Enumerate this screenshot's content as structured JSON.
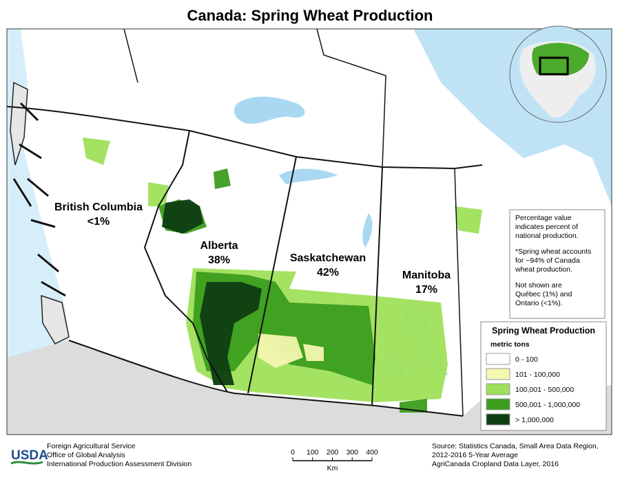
{
  "title": "Canada: Spring Wheat Production",
  "provinces": [
    {
      "name": "British Columbia",
      "share": "<1%"
    },
    {
      "name": "Alberta",
      "share": "38%"
    },
    {
      "name": "Saskatchewan",
      "share": "42%"
    },
    {
      "name": "Manitoba",
      "share": "17%"
    }
  ],
  "note": {
    "paragraphs": [
      [
        "Percentage value",
        "indicates percent of",
        "national production."
      ],
      [
        "*Spring wheat accounts",
        "for ~94% of Canada",
        "wheat production."
      ],
      [
        "Not shown are",
        "Québec (1%) and",
        "Ontario (<1%)."
      ]
    ]
  },
  "legend": {
    "title": "Spring Wheat Production",
    "unit": "metric tons",
    "classes": [
      {
        "label": "0 - 100",
        "color": "#ffffff"
      },
      {
        "label": "101 - 100,000",
        "color": "#f3f7b0"
      },
      {
        "label": "100,001 - 500,000",
        "color": "#9fe05a"
      },
      {
        "label": "500,001 - 1,000,000",
        "color": "#3c9d1e"
      },
      {
        "label": "> 1,000,000",
        "color": "#0e3d12"
      }
    ]
  },
  "scale_bar": {
    "ticks": [
      "0",
      "100",
      "200",
      "300",
      "400"
    ],
    "unit": "Km"
  },
  "agency": {
    "logo": "USDA",
    "lines": [
      "Foreign Agricultural Service",
      "Office of Global Analysis",
      "International Production Assessment Division"
    ]
  },
  "source": [
    "Source: Statistics Canada, Small Area Data Region,",
    "2012-2016 5-Year Average",
    "AgriCanada Cropland Data Layer, 2016"
  ]
}
